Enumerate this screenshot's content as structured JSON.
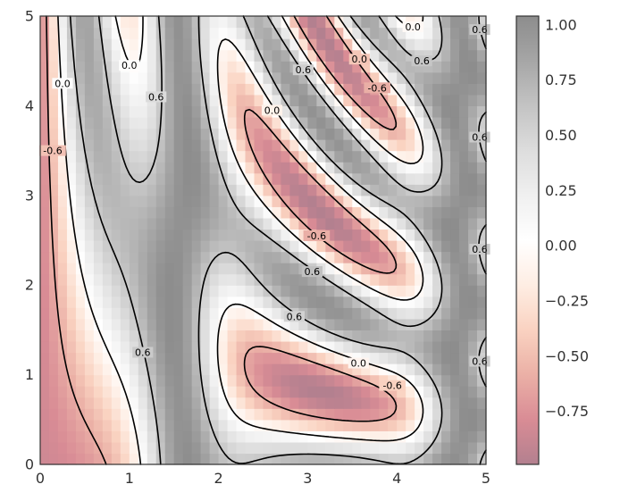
{
  "chart_data": {
    "type": "heatmap",
    "title": "",
    "xlabel": "",
    "ylabel": "",
    "xlim": [
      0,
      5
    ],
    "ylim": [
      0,
      5
    ],
    "x_ticks": [
      "0",
      "1",
      "2",
      "3",
      "4",
      "5"
    ],
    "y_ticks": [
      "0",
      "1",
      "2",
      "3",
      "4",
      "5"
    ],
    "function": "sin(x)^10 + cos(10 + y*x) * cos(x)",
    "grid_resolution": [
      50,
      40
    ],
    "colormap": "RdGy",
    "alpha": 0.5,
    "interpolation": "nearest",
    "color_range": [
      -0.99,
      1.04
    ],
    "colorbar": {
      "ticks": [
        "1.00",
        "0.75",
        "0.50",
        "0.25",
        "0.00",
        "−0.25",
        "−0.50",
        "−0.75"
      ],
      "tick_values": [
        1.0,
        0.75,
        0.5,
        0.25,
        0.0,
        -0.25,
        -0.5,
        -0.75
      ]
    },
    "contour_levels": [
      -0.6,
      0.0,
      0.6
    ],
    "contour_label": "0.6",
    "contour_label_zero": "0.0",
    "contour_label_neg": "-0.6",
    "contour_labels": [
      {
        "text": "-0.6",
        "x": 0.14,
        "y": 3.5
      },
      {
        "text": "0.0",
        "x": 0.25,
        "y": 4.25
      },
      {
        "text": "0.0",
        "x": 1.0,
        "y": 4.45
      },
      {
        "text": "0.6",
        "x": 1.3,
        "y": 4.1
      },
      {
        "text": "0.6",
        "x": 1.15,
        "y": 1.25
      },
      {
        "text": "0.6",
        "x": 2.95,
        "y": 4.4
      },
      {
        "text": "0.0",
        "x": 2.6,
        "y": 3.95
      },
      {
        "text": "-0.6",
        "x": 3.1,
        "y": 2.55
      },
      {
        "text": "0.6",
        "x": 3.05,
        "y": 2.15
      },
      {
        "text": "0.6",
        "x": 2.85,
        "y": 1.65
      },
      {
        "text": "0.0",
        "x": 3.58,
        "y": 4.52
      },
      {
        "text": "-0.6",
        "x": 3.78,
        "y": 4.2
      },
      {
        "text": "0.0",
        "x": 4.18,
        "y": 4.88
      },
      {
        "text": "0.6",
        "x": 4.28,
        "y": 4.5
      },
      {
        "text": "0.0",
        "x": 3.57,
        "y": 1.13
      },
      {
        "text": "-0.6",
        "x": 3.95,
        "y": 0.88
      },
      {
        "text": "0.6",
        "x": 4.93,
        "y": 4.85
      },
      {
        "text": "0.6",
        "x": 4.93,
        "y": 3.65
      },
      {
        "text": "0.6",
        "x": 4.93,
        "y": 2.4
      },
      {
        "text": "0.6",
        "x": 4.93,
        "y": 1.15
      }
    ]
  }
}
